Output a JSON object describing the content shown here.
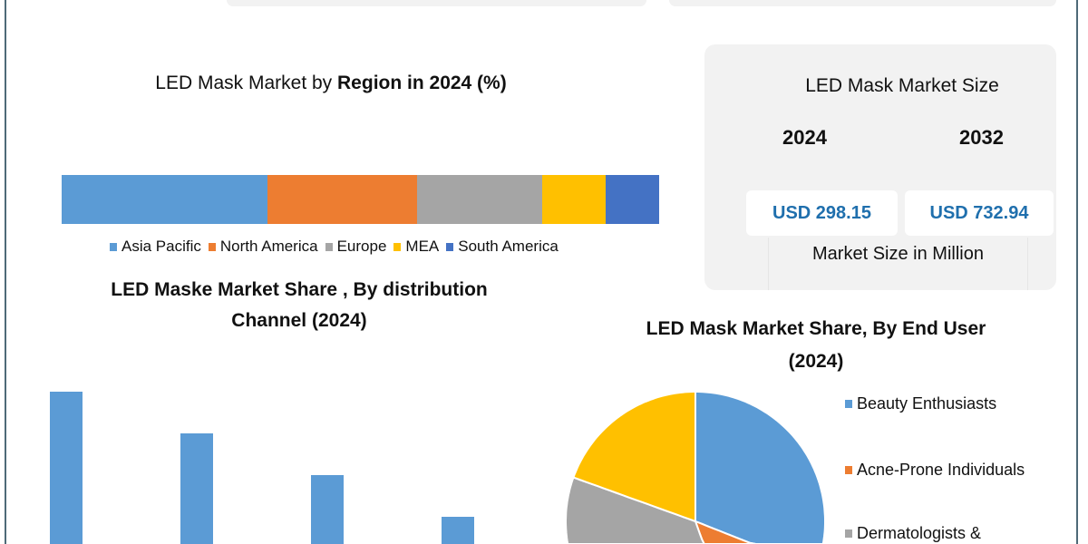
{
  "colors": {
    "frame": "#4e6a78",
    "usd_text": "#1f6fad",
    "card_bg": "#f2f2f2"
  },
  "chart_data": [
    {
      "type": "bar",
      "stacked": true,
      "orientation": "horizontal",
      "title_plain": "LED Mask Market by ",
      "title_bold": "Region in 2024 (%)",
      "xlim": [
        0,
        100
      ],
      "series": [
        {
          "name": "Asia Pacific",
          "values": [
            34.5
          ],
          "color": "#5b9bd5"
        },
        {
          "name": "North America",
          "values": [
            25
          ],
          "color": "#ed7d31"
        },
        {
          "name": "Europe",
          "values": [
            21
          ],
          "color": "#a5a5a5"
        },
        {
          "name": "MEA",
          "values": [
            10.5
          ],
          "color": "#ffc000"
        },
        {
          "name": "South America",
          "values": [
            9
          ],
          "color": "#4472c4"
        }
      ],
      "legend": "bottom",
      "grid": false
    },
    {
      "type": "bar",
      "title_line1": "LED Maske Market Share , By distribution",
      "title_line2": "Channel (2024)",
      "values": [
        4,
        3,
        2,
        1
      ],
      "ylim": [
        0,
        4.3
      ],
      "color": "#5b9bd5",
      "grid": false
    },
    {
      "type": "pie",
      "title_line1": "LED Mask Market Share, By End User",
      "title_line2": "(2024)",
      "slices": [
        {
          "name": "Beauty Enthusiasts",
          "value": 31,
          "color": "#5b9bd5"
        },
        {
          "name": "Acne-Prone Individuals",
          "value": 13.5,
          "color": "#ed7d31"
        },
        {
          "name": "Dermatologists &",
          "value": 36,
          "color": "#a5a5a5"
        },
        {
          "value": 19.5,
          "color": "#ffc000"
        }
      ],
      "legend": "right"
    }
  ],
  "market_size": {
    "title": "LED Mask Market Size",
    "year_a": "2024",
    "year_b": "2032",
    "value_a": "USD 298.15",
    "value_b": "USD 732.94",
    "unit_label": "Market Size in Million"
  }
}
